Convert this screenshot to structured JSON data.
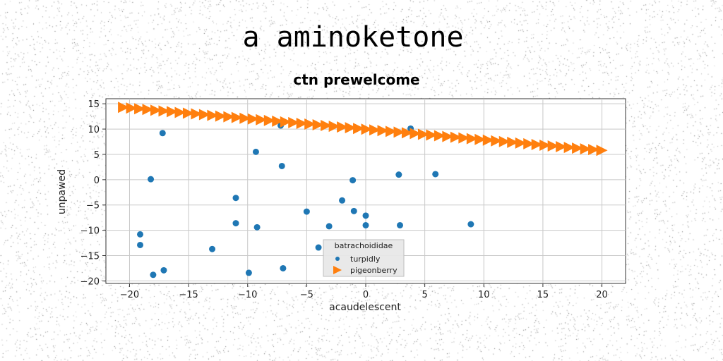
{
  "page": {
    "suptitle": "a aminoketone"
  },
  "chart_data": {
    "type": "scatter",
    "title": "ctn prewelcome",
    "xlabel": "acaudelescent",
    "ylabel": "unpawed",
    "xlim": [
      -22,
      22
    ],
    "ylim": [
      -20.5,
      16
    ],
    "xticks": [
      -20,
      -15,
      -10,
      -5,
      0,
      5,
      10,
      15,
      20
    ],
    "yticks": [
      -20,
      -15,
      -10,
      -5,
      0,
      5,
      10,
      15
    ],
    "xtick_labels": [
      "−20",
      "−15",
      "−10",
      "−5",
      "0",
      "5",
      "10",
      "15",
      "20"
    ],
    "ytick_labels": [
      "−20",
      "−15",
      "−10",
      "−5",
      "0",
      "5",
      "10",
      "15"
    ],
    "grid": true,
    "legend": {
      "title": "batrachoididae",
      "placement": "lower-center"
    },
    "series": [
      {
        "name": "turpidly",
        "marker": "circle",
        "color": "#1f77b4",
        "points": [
          [
            -17.2,
            9.2
          ],
          [
            -18.2,
            0.1
          ],
          [
            -19.1,
            -10.8
          ],
          [
            -19.1,
            -12.9
          ],
          [
            -18.0,
            -18.8
          ],
          [
            -17.1,
            -17.9
          ],
          [
            -13.0,
            -13.7
          ],
          [
            -11.0,
            -3.6
          ],
          [
            -11.0,
            -8.6
          ],
          [
            -9.9,
            -18.4
          ],
          [
            -9.3,
            5.5
          ],
          [
            -9.2,
            -9.4
          ],
          [
            -7.1,
            2.7
          ],
          [
            -7.0,
            -17.5
          ],
          [
            -7.2,
            10.7
          ],
          [
            -5.0,
            -6.3
          ],
          [
            -4.0,
            -13.4
          ],
          [
            -3.1,
            -9.2
          ],
          [
            -2.0,
            -4.1
          ],
          [
            -1.1,
            -0.1
          ],
          [
            -1.0,
            -6.2
          ],
          [
            0.0,
            -7.1
          ],
          [
            0.0,
            -9.0
          ],
          [
            2.8,
            1.0
          ],
          [
            2.9,
            -9.0
          ],
          [
            3.8,
            10.1
          ],
          [
            5.9,
            1.1
          ],
          [
            8.9,
            -8.8
          ]
        ]
      },
      {
        "name": "pigeonberry",
        "marker": "triangle-right",
        "color": "#ff7f0e",
        "line": {
          "x_from": -20.5,
          "x_to": 20.0,
          "y_from": 14.3,
          "y_to": 5.8,
          "count": 60
        }
      }
    ]
  }
}
